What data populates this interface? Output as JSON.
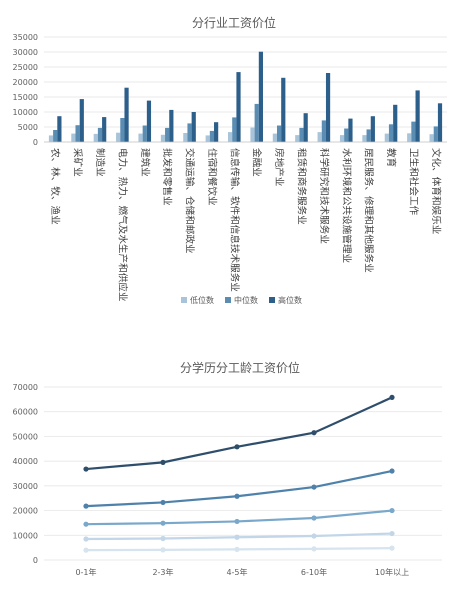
{
  "chart_data": [
    {
      "type": "bar",
      "title": "分行业工资价位",
      "categories": [
        "农、林、牧、渔业",
        "采矿业",
        "制造业",
        "电力、热力、燃气及水生产和供应业",
        "建筑业",
        "批发和零售业",
        "交通运输、仓储和邮政业",
        "住宿和餐饮业",
        "信息传输、软件和信息技术服务业",
        "金融业",
        "房地产业",
        "租赁和商务服务业",
        "科学研究和技术服务业",
        "水利环境和公共设施管理业",
        "居民服务、修理和其他服务业",
        "教育",
        "卫生和社会工作",
        "文化、体育和娱乐业"
      ],
      "series": [
        {
          "name": "低位数",
          "color": "#a9c4d9",
          "values": [
            2200,
            2800,
            2700,
            3100,
            2800,
            2400,
            3000,
            2200,
            3300,
            4800,
            2800,
            2300,
            3300,
            2300,
            2300,
            2800,
            2900,
            2600
          ]
        },
        {
          "name": "中位数",
          "color": "#5b8db3",
          "values": [
            4000,
            5600,
            4700,
            8000,
            5500,
            4700,
            6200,
            3700,
            8200,
            12700,
            5500,
            4700,
            7200,
            4500,
            4200,
            5900,
            6800,
            5200
          ]
        },
        {
          "name": "高位数",
          "color": "#2d5f8b",
          "values": [
            8600,
            14300,
            8300,
            18100,
            13800,
            10700,
            10000,
            6600,
            23300,
            30100,
            21400,
            9600,
            23000,
            7800,
            8600,
            12400,
            17200,
            12900
          ]
        }
      ],
      "yticks": [
        "0",
        "5000",
        "10000",
        "15000",
        "20000",
        "25000",
        "30000",
        "35000"
      ],
      "ylim": [
        0,
        35000
      ],
      "grid": true,
      "legend": "bottom"
    },
    {
      "type": "line",
      "title": "分学历分工龄工资价位",
      "categories": [
        "0-1年",
        "2-3年",
        "4-5年",
        "6-10年",
        "10年以上"
      ],
      "series": [
        {
          "color": "#d6e4ef",
          "values": [
            4000,
            4100,
            4300,
            4500,
            4800
          ]
        },
        {
          "color": "#c2d6e7",
          "values": [
            8500,
            8700,
            9200,
            9700,
            10700
          ]
        },
        {
          "color": "#7aa8cb",
          "values": [
            14500,
            14900,
            15600,
            17000,
            20000
          ]
        },
        {
          "color": "#4f82ab",
          "values": [
            21800,
            23300,
            25800,
            29500,
            36000
          ]
        },
        {
          "color": "#2e4e6b",
          "values": [
            36800,
            39500,
            45800,
            51500,
            65800
          ]
        }
      ],
      "yticks": [
        "0",
        "10000",
        "20000",
        "30000",
        "40000",
        "50000",
        "60000",
        "70000"
      ],
      "ylim": [
        0,
        70000
      ],
      "grid": true
    }
  ]
}
